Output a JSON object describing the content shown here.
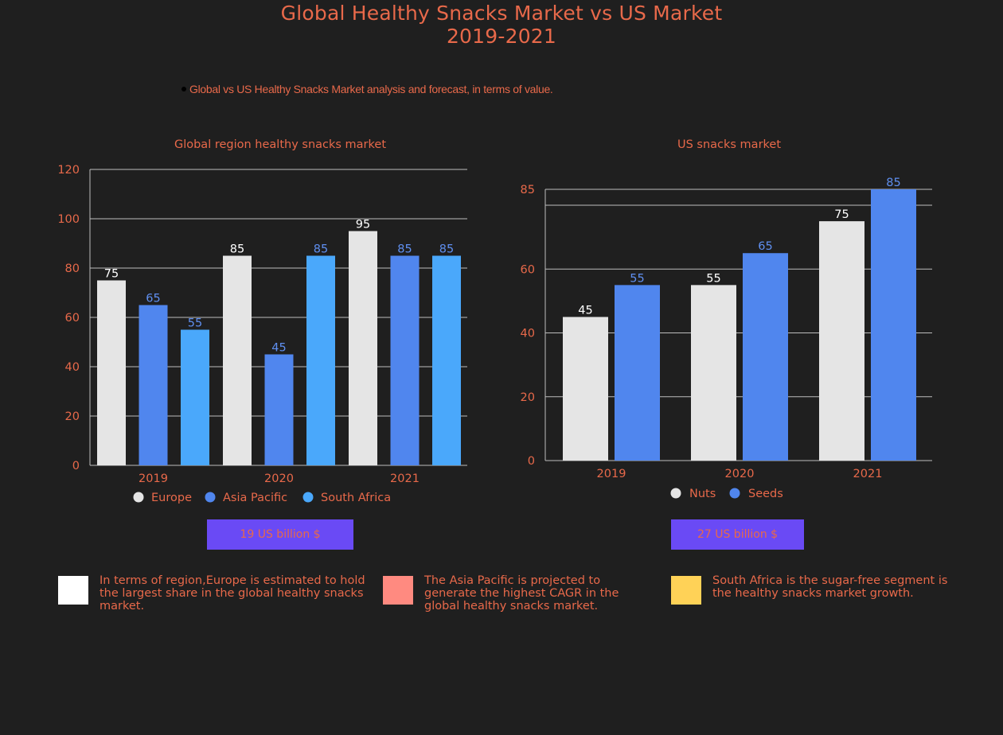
{
  "title_line1": "Global Healthy Snacks Market vs US Market",
  "title_line2": "2019-2021",
  "subtitle": "Global vs US Healthy Snacks Market analysis and forecast, in terms of value.",
  "colors": {
    "background": "#1f1f1f",
    "text": "#e8694a",
    "badge": "#6a4af5",
    "europe": "#e5e5e5",
    "asia_pacific": "#5086ee",
    "south_africa": "#4aa8fb",
    "nuts": "#e5e5e5",
    "seeds": "#5086ee"
  },
  "chart_data": [
    {
      "type": "bar",
      "title": "Global region healthy snacks market",
      "categories": [
        "2019",
        "2020",
        "2021"
      ],
      "series": [
        {
          "name": "Europe",
          "values": [
            75,
            85,
            95
          ],
          "color": "#e5e5e5",
          "label_color": "#ffffff"
        },
        {
          "name": "Asia Pacific",
          "values": [
            65,
            45,
            85
          ],
          "color": "#5086ee",
          "label_color": "#5f8ff0"
        },
        {
          "name": "South Africa",
          "values": [
            55,
            85,
            85
          ],
          "color": "#4aa8fb",
          "label_color": "#5f8ff0"
        }
      ],
      "ylim": [
        0,
        120
      ],
      "yticks": [
        0,
        20,
        40,
        60,
        80,
        100,
        120
      ],
      "grid": true,
      "legend": "bottom",
      "badge": "19 US billion $"
    },
    {
      "type": "bar",
      "title": "US snacks market",
      "categories": [
        "2019",
        "2020",
        "2021"
      ],
      "series": [
        {
          "name": "Nuts",
          "values": [
            45,
            55,
            75
          ],
          "color": "#e5e5e5",
          "label_color": "#ffffff"
        },
        {
          "name": "Seeds",
          "values": [
            55,
            65,
            85
          ],
          "color": "#5086ee",
          "label_color": "#5f8ff0"
        }
      ],
      "ylim": [
        0,
        85
      ],
      "yticks": [
        0,
        20,
        40,
        60,
        85
      ],
      "grid": true,
      "legend": "bottom",
      "badge": "27 US billion $"
    }
  ],
  "notes": [
    {
      "text": "In terms of region,Europe is estimated to hold the largest share in the global healthy snacks market.",
      "color": "#ffffff"
    },
    {
      "text": "The Asia Pacific is projected to generate the highest CAGR in the global healthy snacks market.",
      "color": "#ff8a80"
    },
    {
      "text": "South Africa is the sugar-free segment is the healthy snacks market growth.",
      "color": "#ffd257"
    }
  ]
}
